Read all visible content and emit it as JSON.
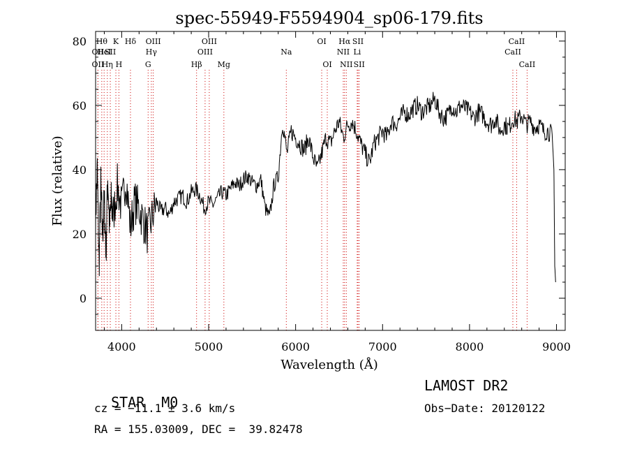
{
  "chart_data": {
    "type": "line",
    "title": "spec-55949-F5594904_sp06-179.fits",
    "xlabel": "Wavelength (Å)",
    "ylabel": "Flux (relative)",
    "xlim": [
      3700,
      9100
    ],
    "ylim": [
      -10,
      83
    ],
    "x_ticks": [
      4000,
      5000,
      6000,
      7000,
      8000,
      9000
    ],
    "y_ticks": [
      0,
      20,
      40,
      60,
      80
    ],
    "grid": false,
    "line_color": "#000000",
    "marker_color": "#cc0000",
    "series": [
      {
        "x": [
          3700,
          3720,
          3740,
          3760,
          3780,
          3800,
          3820,
          3840,
          3860,
          3880,
          3900,
          3950,
          4000,
          4050,
          4100,
          4150,
          4200,
          4250,
          4300,
          4350,
          4400,
          4450,
          4500,
          4550,
          4600,
          4650,
          4700,
          4750,
          4800,
          4850,
          4900,
          4950,
          5000,
          5050,
          5100,
          5150,
          5200,
          5250,
          5300,
          5350,
          5400,
          5450,
          5500,
          5550,
          5600,
          5650,
          5700,
          5750,
          5800,
          5850,
          5900,
          5950,
          6000,
          6050,
          6100,
          6150,
          6200,
          6250,
          6300,
          6350,
          6400,
          6450,
          6500,
          6550,
          6600,
          6650,
          6700,
          6750,
          6800,
          6850,
          6900,
          6950,
          7000,
          7050,
          7100,
          7150,
          7200,
          7250,
          7300,
          7350,
          7400,
          7450,
          7500,
          7550,
          7600,
          7650,
          7700,
          7750,
          7800,
          7850,
          7900,
          7950,
          8000,
          8050,
          8100,
          8150,
          8200,
          8250,
          8300,
          8350,
          8400,
          8450,
          8500,
          8550,
          8600,
          8650,
          8700,
          8750,
          8800,
          8850,
          8900,
          8950,
          8970,
          8980,
          8990
        ],
        "y": [
          25,
          40,
          10,
          35,
          20,
          30,
          15,
          38,
          22,
          30,
          25,
          35,
          28,
          38,
          22,
          30,
          28,
          24,
          20,
          25,
          30,
          27,
          28,
          26,
          30,
          31,
          32,
          30,
          33,
          34,
          32,
          28,
          30,
          29,
          31,
          33,
          32,
          34,
          36,
          35,
          37,
          38,
          36,
          35,
          37,
          28,
          25,
          35,
          38,
          55,
          45,
          52,
          50,
          48,
          46,
          50,
          44,
          40,
          45,
          50,
          48,
          52,
          55,
          50,
          54,
          55,
          52,
          48,
          45,
          42,
          48,
          50,
          52,
          50,
          55,
          54,
          56,
          58,
          57,
          59,
          60,
          58,
          59,
          60,
          62,
          58,
          56,
          57,
          60,
          58,
          60,
          59,
          58,
          56,
          58,
          57,
          55,
          54,
          56,
          52,
          54,
          53,
          56,
          55,
          57,
          54,
          55,
          53,
          54,
          52,
          52,
          51,
          40,
          10,
          5
        ]
      }
    ],
    "lines": [
      {
        "x": 3727,
        "label": "OII",
        "row": 1
      },
      {
        "x": 3727,
        "label": "OII",
        "row": 2
      },
      {
        "x": 3771,
        "label": "Hθ",
        "row": 0
      },
      {
        "x": 3798,
        "label": "HeI",
        "row": 1
      },
      {
        "x": 3835,
        "label": "Hη",
        "row": 2
      },
      {
        "x": 3869,
        "label": "SII",
        "row": 1
      },
      {
        "x": 3933,
        "label": "K",
        "row": 0
      },
      {
        "x": 3968,
        "label": "H",
        "row": 2
      },
      {
        "x": 4101,
        "label": "Hδ",
        "row": 0
      },
      {
        "x": 4304,
        "label": "G",
        "row": 2
      },
      {
        "x": 4341,
        "label": "Hγ",
        "row": 1
      },
      {
        "x": 4363,
        "label": "OIII",
        "row": 0
      },
      {
        "x": 4861,
        "label": "Hβ",
        "row": 2
      },
      {
        "x": 4959,
        "label": "OIII",
        "row": 1
      },
      {
        "x": 5007,
        "label": "OIII",
        "row": 0
      },
      {
        "x": 5175,
        "label": "Mg",
        "row": 2
      },
      {
        "x": 5893,
        "label": "Na",
        "row": 1
      },
      {
        "x": 6300,
        "label": "OI",
        "row": 0
      },
      {
        "x": 6364,
        "label": "OI",
        "row": 2
      },
      {
        "x": 6548,
        "label": "NII",
        "row": 1
      },
      {
        "x": 6563,
        "label": "Hα",
        "row": 0
      },
      {
        "x": 6583,
        "label": "NII",
        "row": 2
      },
      {
        "x": 6708,
        "label": "Li",
        "row": 1
      },
      {
        "x": 6717,
        "label": "SII",
        "row": 0
      },
      {
        "x": 6731,
        "label": "SII",
        "row": 2
      },
      {
        "x": 8498,
        "label": "CaII",
        "row": 1
      },
      {
        "x": 8542,
        "label": "CaII",
        "row": 0
      },
      {
        "x": 8662,
        "label": "CaII",
        "row": 2
      }
    ]
  },
  "info": {
    "class": "STAR",
    "subclass": "M0",
    "survey": "LAMOST DR2",
    "cz": "cz = −11.1 ± 3.6 km/s",
    "obs_date": "Obs−Date: 20120122",
    "coords": "RA = 155.03009, DEC =  39.82478"
  }
}
